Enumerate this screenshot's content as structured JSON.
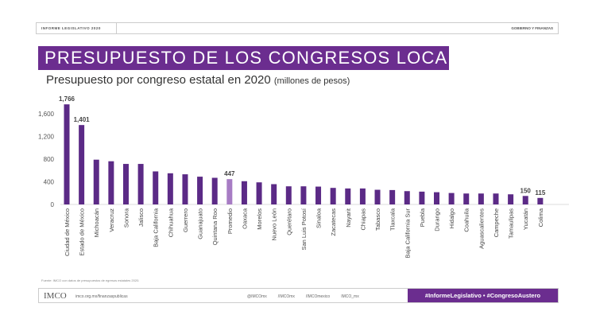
{
  "header": {
    "left": "INFORME LEGISLATIVO 2020",
    "right": "GOBIERNO Y FINANZAS"
  },
  "title": "PRESUPUESTO DE LOS CONGRESOS LOCALES",
  "subtitle": "Presupuesto por congreso estatal en 2020",
  "subtitle_unit": "(millones de pesos)",
  "source": "Fuente: IMCO con datos de presupuestos de egresos estatales 2020.",
  "footer": {
    "logo": "IMCO",
    "url": "imco.org.mx/finanzaspublicas",
    "social": [
      "@IMCOmx",
      "/IMCOmx",
      "/IMCOmexico",
      "IMCO_mx"
    ],
    "hashtags": "#InformeLegislativo • #CongresoAustero"
  },
  "colors": {
    "bar": "#5b2a86",
    "average": "#a77cc4",
    "brand": "#6b2d8f"
  },
  "chart_data": {
    "type": "bar",
    "ylim": [
      0,
      1800
    ],
    "yticks": [
      "0",
      "400",
      "800",
      "1,200",
      "1,600"
    ],
    "ytick_values": [
      0,
      400,
      800,
      1200,
      1600
    ],
    "grid": false,
    "categories": [
      "Ciudad de México",
      "Estado de México",
      "Michoacán",
      "Veracruz",
      "Sonora",
      "Jalisco",
      "Baja California",
      "Chihuahua",
      "Guerrero",
      "Guanajuato",
      "Quintana Roo",
      "Promedio",
      "Oaxaca",
      "Morelos",
      "Nuevo León",
      "Querétaro",
      "San Luis Potosí",
      "Sinaloa",
      "Zacatecas",
      "Nayarit",
      "Chiapas",
      "Tabasco",
      "Tlaxcala",
      "Baja California Sur",
      "Puebla",
      "Durango",
      "Hidalgo",
      "Coahuila",
      "Aguascalientes",
      "Campeche",
      "Tamaulipas",
      "Yucatán",
      "Colima"
    ],
    "values": [
      1766,
      1401,
      790,
      762,
      715,
      715,
      583,
      550,
      532,
      490,
      470,
      447,
      410,
      390,
      358,
      320,
      320,
      315,
      292,
      282,
      282,
      259,
      254,
      235,
      226,
      216,
      202,
      193,
      193,
      193,
      179,
      150,
      115
    ],
    "data_labels": {
      "0": "1,766",
      "1": "1,401",
      "11": "447",
      "31": "150",
      "32": "115"
    }
  }
}
